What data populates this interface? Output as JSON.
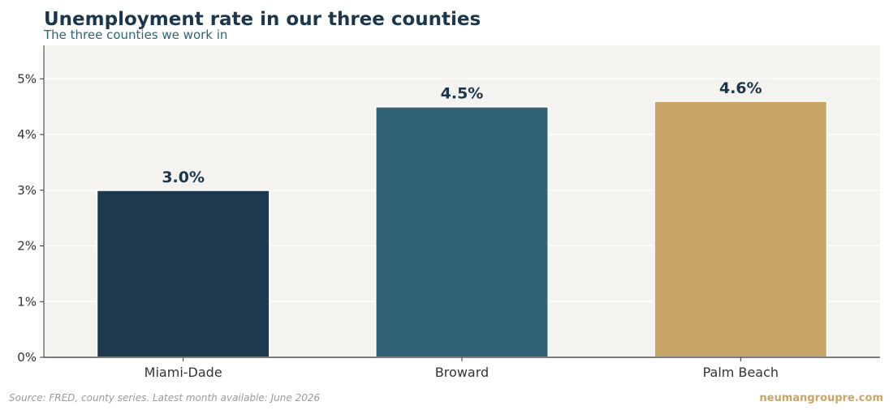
{
  "header": {
    "title": "Unemployment rate in our three counties",
    "subtitle": "The three counties we work in"
  },
  "footer": {
    "source": "Source: FRED, county series. Latest month available: June 2026",
    "brand": "neumangroupre.com"
  },
  "chart_data": {
    "type": "bar",
    "title": "Unemployment rate in our three counties",
    "subtitle": "The three counties we work in",
    "xlabel": "",
    "ylabel": "",
    "categories": [
      "Miami-Dade",
      "Broward",
      "Palm Beach"
    ],
    "values": [
      3.0,
      4.5,
      4.6
    ],
    "value_labels": [
      "3.0%",
      "4.5%",
      "4.6%"
    ],
    "colors": [
      "#1e384d",
      "#2f6374",
      "#c9a567"
    ],
    "ylim": [
      0,
      5.6
    ],
    "yticks": [
      0,
      1,
      2,
      3,
      4,
      5
    ],
    "ytick_labels": [
      "0%",
      "1%",
      "2%",
      "3%",
      "4%",
      "5%"
    ],
    "grid": true,
    "plot_background": "#f4f3ef",
    "label_color": "#1c374d"
  }
}
